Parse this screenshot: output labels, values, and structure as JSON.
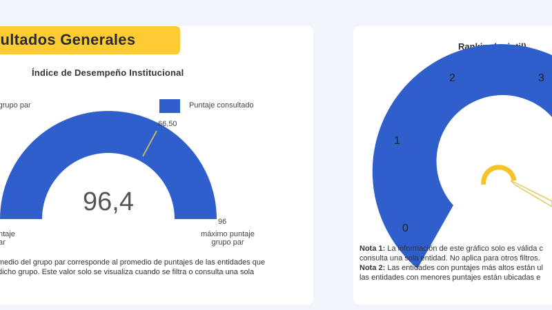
{
  "colors": {
    "gauge_fill": "#2f5fcb",
    "banner": "#fdcb33",
    "marker": "#c9b36b",
    "ranking_marker": "#f6c22a"
  },
  "left_panel": {
    "banner_title": "sultados Generales",
    "gauge_title": "Índice de Desempeño Institucional",
    "legend_left": "io grupo par",
    "legend_right": "Puntaje consultado",
    "marker_value": "66,50",
    "center_value": "96,4",
    "max_value": "96",
    "min_label_line1": "ntaje",
    "min_label_line2": "ar",
    "max_label_line1": "máximo puntaje",
    "max_label_line2": "grupo par",
    "note_line1": "medio del grupo par corresponde al promedio de puntajes de las entidades que",
    "note_line2": "dicho grupo.  Este valor solo se visualiza cuando se filtra o consulta una sola"
  },
  "right_panel": {
    "ranking_title": "Ranking(quintil)",
    "labels": [
      "0",
      "1",
      "2",
      "3"
    ],
    "note1_bold": "Nota 1:",
    "note1_line1": " La información de este gráfico solo es válida c",
    "note1_line2": "consulta una sola entidad. No aplica para otros filtros.",
    "note2_bold": "Nota 2:",
    "note2_line1": " Las entidades con puntajes más altos están ul",
    "note2_line2": "las entidades con menores puntajes están ubicadas e"
  }
}
